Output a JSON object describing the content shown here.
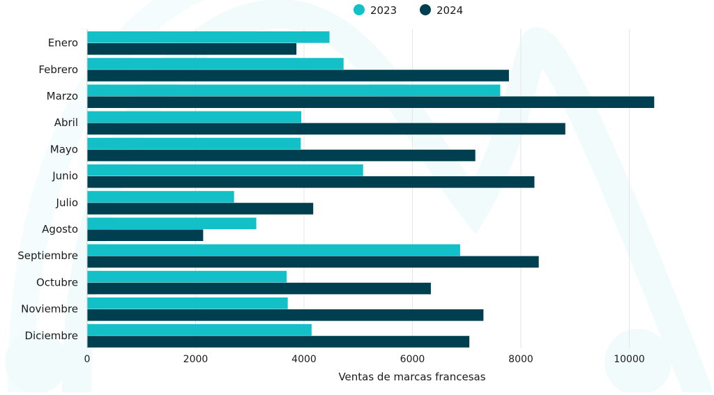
{
  "chart_data": {
    "type": "bar",
    "orientation": "horizontal",
    "categories": [
      "Enero",
      "Febrero",
      "Marzo",
      "Abril",
      "Mayo",
      "Junio",
      "Julio",
      "Agosto",
      "Septiembre",
      "Octubre",
      "Noviembre",
      "Diciembre"
    ],
    "series": [
      {
        "name": "2023",
        "color": "#14c0c8",
        "values": [
          4470,
          4730,
          7620,
          3950,
          3940,
          5090,
          2710,
          3120,
          6880,
          3680,
          3700,
          4140
        ]
      },
      {
        "name": "2024",
        "color": "#003f4f",
        "values": [
          3860,
          7780,
          10460,
          8820,
          7160,
          8250,
          4170,
          2140,
          8330,
          6340,
          7310,
          7050
        ]
      }
    ],
    "xlabel": "Ventas de marcas francesas",
    "ylabel": "",
    "xlim": [
      0,
      10500
    ],
    "x_ticks": [
      0,
      2000,
      4000,
      6000,
      8000,
      10000
    ],
    "grid": "vertical",
    "legend": "top-center"
  }
}
